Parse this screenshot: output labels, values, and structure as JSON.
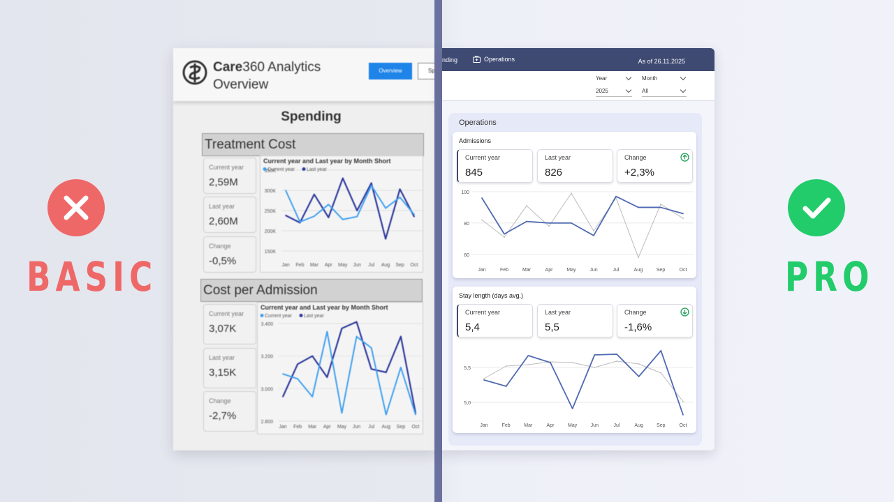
{
  "labels": {
    "basic": "BASIC",
    "pro": "PRO"
  },
  "colors": {
    "bad": "#ef6868",
    "good": "#22cc6a",
    "pro_nav": "#3e4a72",
    "basic_cy": "#3ea0f0",
    "basic_ly": "#2f3a9c",
    "pro_cy": "#4f6ab2",
    "pro_ly": "#bbbbbb"
  },
  "basic": {
    "brand_bold": "Care",
    "brand_rest": "360 Analytics",
    "subtitle": "Overview",
    "overview_button": "Overview",
    "spending_button_partial": "Sp",
    "page_heading": "Spending",
    "sections": [
      {
        "title": "Treatment Cost",
        "cards": [
          {
            "label": "Current year",
            "value": "2,59M"
          },
          {
            "label": "Last year",
            "value": "2,60M"
          },
          {
            "label": "Change",
            "value": "-0,5%"
          }
        ],
        "chart_title": "Current year and Last year by Month Short",
        "legend": [
          "Current year",
          "Last year"
        ]
      },
      {
        "title": "Cost per Admission",
        "cards": [
          {
            "label": "Current year",
            "value": "3,07K"
          },
          {
            "label": "Last year",
            "value": "3,15K"
          },
          {
            "label": "Change",
            "value": "-2,7%"
          }
        ],
        "chart_title": "Current year and Last year by Month Short",
        "legend": [
          "Current year",
          "Last year"
        ]
      }
    ]
  },
  "pro": {
    "nav_spending_partial": "nding",
    "nav_operations": "Operations",
    "as_of": "As of 26.11.2025",
    "filters": [
      {
        "label": "Year",
        "value": "2025"
      },
      {
        "label": "Month",
        "value": "All"
      }
    ],
    "section_title": "Operations",
    "cards": [
      {
        "title": "Admissions",
        "kpis": [
          {
            "label": "Current year",
            "value": "845"
          },
          {
            "label": "Last year",
            "value": "826"
          },
          {
            "label": "Change",
            "value": "+2,3%",
            "icon": "arrow-up-circle-icon"
          }
        ]
      },
      {
        "title": "Stay length (days avg.)",
        "kpis": [
          {
            "label": "Current year",
            "value": "5,4"
          },
          {
            "label": "Last year",
            "value": "5,5"
          },
          {
            "label": "Change",
            "value": "-1,6%",
            "icon": "arrow-down-circle-icon"
          }
        ]
      }
    ]
  },
  "chart_data": [
    {
      "type": "line",
      "categories": [
        "Jan",
        "Feb",
        "Mar",
        "Apr",
        "May",
        "Jun",
        "Jul",
        "Aug",
        "Sep",
        "Oct"
      ],
      "series": [
        {
          "name": "Current year",
          "values": [
            300,
            222,
            236,
            265,
            228,
            235,
            312,
            256,
            283,
            240
          ]
        },
        {
          "name": "Last year",
          "values": [
            238,
            220,
            290,
            233,
            330,
            250,
            318,
            180,
            303,
            235
          ]
        }
      ],
      "yticks": [
        "150K",
        "200K",
        "250K",
        "300K",
        "350K"
      ],
      "ylim": [
        150,
        350
      ]
    },
    {
      "type": "line",
      "categories": [
        "Jan",
        "Feb",
        "Mar",
        "Apr",
        "May",
        "Jun",
        "Jul",
        "Aug",
        "Sep",
        "Oct"
      ],
      "series": [
        {
          "name": "Current year",
          "values": [
            3090,
            3060,
            2950,
            3350,
            2850,
            3320,
            3250,
            2840,
            3130,
            2840
          ]
        },
        {
          "name": "Last year",
          "values": [
            2950,
            3150,
            3200,
            3070,
            3370,
            3410,
            3120,
            3100,
            3320,
            2850
          ]
        }
      ],
      "yticks": [
        "2.800",
        "3.000",
        "3.200",
        "3.400"
      ],
      "ylim": [
        2800,
        3400
      ]
    },
    {
      "type": "line",
      "categories": [
        "Jan",
        "Feb",
        "Mar",
        "Apr",
        "May",
        "Jun",
        "Jul",
        "Aug",
        "Sep",
        "Oct"
      ],
      "series": [
        {
          "values": [
            96,
            73,
            81,
            80,
            80,
            72,
            97,
            90,
            90,
            86
          ]
        },
        {
          "values": [
            82,
            71,
            91,
            78,
            99,
            75,
            96,
            58,
            92,
            83
          ]
        }
      ],
      "yticks": [
        "60",
        "80",
        "100"
      ],
      "ylim": [
        55,
        100
      ]
    },
    {
      "type": "line",
      "categories": [
        "Jan",
        "Feb",
        "Mar",
        "Apr",
        "May",
        "Jun",
        "Jul",
        "Aug",
        "Sep",
        "Oct"
      ],
      "series": [
        {
          "values": [
            5.32,
            5.23,
            5.67,
            5.57,
            4.91,
            5.68,
            5.69,
            5.37,
            5.74,
            4.82
          ]
        },
        {
          "values": [
            5.34,
            5.52,
            5.54,
            5.58,
            5.57,
            5.5,
            5.59,
            5.55,
            5.42,
            5.01
          ]
        }
      ],
      "yticks": [
        "5,0",
        "5,5"
      ],
      "ylim": [
        4.8,
        5.8
      ]
    }
  ]
}
